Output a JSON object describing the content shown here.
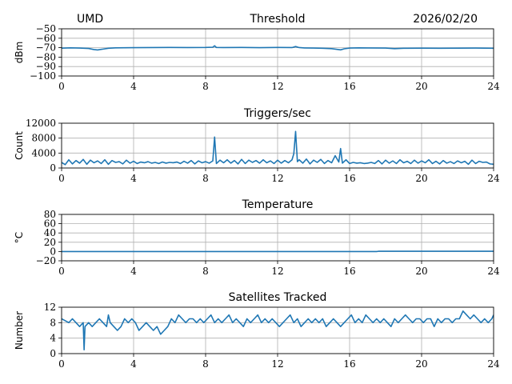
{
  "header": {
    "site": "UMD",
    "date": "2026/02/20"
  },
  "colors": {
    "series": "#1f77b4",
    "grid": "#b0b0b0",
    "axis": "#000000"
  },
  "chart_data": [
    {
      "type": "line",
      "title": "Threshold",
      "xlabel": "",
      "ylabel": "dBm",
      "xlim": [
        0,
        24
      ],
      "ylim": [
        -100,
        -50
      ],
      "xticks": [
        0,
        4,
        8,
        12,
        16,
        20,
        24
      ],
      "yticks": [
        -100,
        -90,
        -80,
        -70,
        -60,
        -50
      ],
      "xtick_labels": [
        "0",
        "4",
        "8",
        "12",
        "16",
        "20",
        "24"
      ],
      "ytick_labels": [
        "−100",
        "−90",
        "−80",
        "−70",
        "−60",
        "−50"
      ],
      "grid": true,
      "series": [
        {
          "x": [
            0,
            0.5,
            1.0,
            1.5,
            1.8,
            2.0,
            2.3,
            2.6,
            3.0,
            4.0,
            5.0,
            6.0,
            7.0,
            8.0,
            8.4,
            8.5,
            8.6,
            9.0,
            10.0,
            11.0,
            12.0,
            12.8,
            13.0,
            13.2,
            13.5,
            14.0,
            14.5,
            15.0,
            15.3,
            15.5,
            15.7,
            16.0,
            16.5,
            17.0,
            18.0,
            18.5,
            19.0,
            20.0,
            21.0,
            22.0,
            23.0,
            24.0
          ],
          "y": [
            -70.5,
            -70.2,
            -70.4,
            -70.8,
            -72.0,
            -72.4,
            -71.5,
            -70.6,
            -70.2,
            -70.0,
            -69.9,
            -69.8,
            -69.9,
            -69.8,
            -69.5,
            -68.0,
            -69.8,
            -69.9,
            -69.8,
            -70.0,
            -69.8,
            -69.9,
            -68.8,
            -69.9,
            -70.3,
            -70.4,
            -70.6,
            -71.0,
            -71.8,
            -72.3,
            -71.2,
            -70.4,
            -70.2,
            -70.3,
            -70.4,
            -71.0,
            -70.6,
            -70.5,
            -70.6,
            -70.5,
            -70.4,
            -70.6
          ]
        }
      ]
    },
    {
      "type": "line",
      "title": "Triggers/sec",
      "xlabel": "",
      "ylabel": "Count",
      "xlim": [
        0,
        24
      ],
      "ylim": [
        0,
        12000
      ],
      "xticks": [
        0,
        4,
        8,
        12,
        16,
        20,
        24
      ],
      "yticks": [
        0,
        4000,
        8000,
        12000
      ],
      "xtick_labels": [
        "0",
        "4",
        "8",
        "12",
        "16",
        "20",
        "24"
      ],
      "ytick_labels": [
        "0",
        "4000",
        "8000",
        "12000"
      ],
      "grid": true,
      "series": [
        {
          "x": [
            0,
            0.2,
            0.4,
            0.6,
            0.8,
            1.0,
            1.2,
            1.4,
            1.6,
            1.8,
            2.0,
            2.2,
            2.4,
            2.6,
            2.8,
            3.0,
            3.2,
            3.4,
            3.6,
            3.8,
            4.0,
            4.2,
            4.4,
            4.6,
            4.8,
            5.0,
            5.2,
            5.4,
            5.6,
            5.8,
            6.0,
            6.2,
            6.4,
            6.6,
            6.8,
            7.0,
            7.2,
            7.4,
            7.6,
            7.8,
            8.0,
            8.2,
            8.4,
            8.5,
            8.6,
            8.8,
            9.0,
            9.2,
            9.4,
            9.6,
            9.8,
            10.0,
            10.2,
            10.4,
            10.6,
            10.8,
            11.0,
            11.2,
            11.4,
            11.6,
            11.8,
            12.0,
            12.2,
            12.4,
            12.6,
            12.8,
            12.9,
            13.0,
            13.1,
            13.2,
            13.4,
            13.6,
            13.8,
            14.0,
            14.2,
            14.4,
            14.6,
            14.8,
            15.0,
            15.2,
            15.4,
            15.5,
            15.6,
            15.8,
            16.0,
            16.2,
            16.4,
            16.6,
            16.8,
            17.0,
            17.2,
            17.4,
            17.6,
            17.8,
            18.0,
            18.2,
            18.4,
            18.6,
            18.8,
            19.0,
            19.2,
            19.4,
            19.6,
            19.8,
            20.0,
            20.2,
            20.4,
            20.6,
            20.8,
            21.0,
            21.2,
            21.4,
            21.6,
            21.8,
            22.0,
            22.2,
            22.4,
            22.6,
            22.8,
            23.0,
            23.2,
            23.4,
            23.6,
            23.8,
            24.0
          ],
          "y": [
            1500,
            900,
            2200,
            1100,
            2000,
            1300,
            2300,
            1000,
            2100,
            1400,
            1900,
            1200,
            2200,
            1000,
            2000,
            1500,
            1700,
            1100,
            2100,
            1300,
            1800,
            1200,
            1600,
            1400,
            1700,
            1300,
            1500,
            1200,
            1600,
            1300,
            1500,
            1400,
            1600,
            1200,
            1800,
            1300,
            2000,
            1100,
            1900,
            1400,
            1700,
            1300,
            1900,
            8300,
            1200,
            2100,
            1400,
            2200,
            1300,
            2000,
            1100,
            2300,
            1200,
            2100,
            1500,
            2000,
            1300,
            2200,
            1400,
            1900,
            1200,
            2100,
            1300,
            2000,
            1400,
            2200,
            3800,
            9800,
            1700,
            2200,
            1300,
            2400,
            1100,
            2100,
            1500,
            2300,
            1200,
            2000,
            1400,
            3300,
            1600,
            5200,
            1300,
            2200,
            1200,
            1500,
            1300,
            1400,
            1200,
            1300,
            1500,
            1200,
            2000,
            1100,
            2100,
            1300,
            1900,
            1200,
            2200,
            1400,
            1800,
            1200,
            2100,
            1300,
            1900,
            1400,
            2200,
            1200,
            1800,
            1100,
            2000,
            1300,
            1700,
            1200,
            1900,
            1400,
            1800,
            1000,
            2100,
            1200,
            1800,
            1500,
            1600,
            1100,
            1000
          ]
        }
      ]
    },
    {
      "type": "line",
      "title": "Temperature",
      "xlabel": "",
      "ylabel": "°C",
      "xlim": [
        0,
        24
      ],
      "ylim": [
        -20,
        80
      ],
      "xticks": [
        0,
        4,
        8,
        12,
        16,
        20,
        24
      ],
      "yticks": [
        -20,
        0,
        20,
        40,
        60,
        80
      ],
      "xtick_labels": [
        "0",
        "4",
        "8",
        "12",
        "16",
        "20",
        "24"
      ],
      "ytick_labels": [
        "−20",
        "0",
        "20",
        "40",
        "60",
        "80"
      ],
      "grid": true,
      "series": [
        {
          "x": [
            0,
            4,
            8,
            12,
            16,
            17.5,
            17.6,
            20,
            24
          ],
          "y": [
            0.0,
            0.0,
            0.0,
            0.0,
            0.0,
            0.0,
            0.5,
            0.5,
            0.5
          ]
        }
      ]
    },
    {
      "type": "line",
      "title": "Satellites Tracked",
      "xlabel": "",
      "ylabel": "Number",
      "xlim": [
        0,
        24
      ],
      "ylim": [
        0,
        12
      ],
      "xticks": [
        0,
        4,
        8,
        12,
        16,
        20,
        24
      ],
      "yticks": [
        0,
        4,
        8,
        12
      ],
      "xtick_labels": [
        "0",
        "4",
        "8",
        "12",
        "16",
        "20",
        "24"
      ],
      "ytick_labels": [
        "0",
        "4",
        "8",
        "12"
      ],
      "grid": true,
      "series": [
        {
          "x": [
            0,
            0.4,
            0.6,
            0.8,
            1.0,
            1.2,
            1.25,
            1.3,
            1.5,
            1.7,
            1.9,
            2.1,
            2.3,
            2.5,
            2.6,
            2.7,
            2.9,
            3.1,
            3.3,
            3.5,
            3.7,
            3.9,
            4.1,
            4.3,
            4.5,
            4.7,
            4.9,
            5.1,
            5.3,
            5.5,
            5.7,
            5.9,
            6.1,
            6.3,
            6.5,
            6.7,
            6.9,
            7.1,
            7.3,
            7.5,
            7.7,
            7.9,
            8.1,
            8.3,
            8.5,
            8.7,
            8.9,
            9.1,
            9.3,
            9.5,
            9.7,
            9.9,
            10.1,
            10.3,
            10.5,
            10.7,
            10.9,
            11.1,
            11.3,
            11.5,
            11.7,
            11.9,
            12.1,
            12.3,
            12.5,
            12.7,
            12.9,
            13.1,
            13.3,
            13.5,
            13.7,
            13.9,
            14.1,
            14.3,
            14.5,
            14.7,
            14.9,
            15.1,
            15.3,
            15.5,
            15.7,
            15.9,
            16.1,
            16.3,
            16.5,
            16.7,
            16.9,
            17.1,
            17.3,
            17.5,
            17.7,
            17.9,
            18.1,
            18.3,
            18.5,
            18.7,
            18.9,
            19.1,
            19.3,
            19.5,
            19.7,
            19.9,
            20.1,
            20.3,
            20.5,
            20.7,
            20.9,
            21.1,
            21.3,
            21.5,
            21.7,
            21.9,
            22.1,
            22.3,
            22.5,
            22.7,
            22.9,
            23.1,
            23.3,
            23.5,
            23.7,
            23.9,
            24.0
          ],
          "y": [
            9,
            8,
            9,
            8,
            7,
            8,
            1,
            7,
            8,
            7,
            8,
            9,
            8,
            7,
            10,
            8,
            7,
            6,
            7,
            9,
            8,
            9,
            8,
            6,
            7,
            8,
            7,
            6,
            7,
            5,
            6,
            7,
            9,
            8,
            10,
            9,
            8,
            9,
            9,
            8,
            9,
            8,
            9,
            10,
            8,
            9,
            8,
            9,
            10,
            8,
            9,
            8,
            7,
            9,
            8,
            9,
            10,
            8,
            9,
            8,
            9,
            8,
            7,
            8,
            9,
            10,
            8,
            9,
            7,
            8,
            9,
            8,
            9,
            8,
            9,
            7,
            8,
            9,
            8,
            7,
            8,
            9,
            10,
            8,
            9,
            8,
            10,
            9,
            8,
            9,
            8,
            9,
            8,
            7,
            9,
            8,
            9,
            10,
            9,
            8,
            9,
            9,
            8,
            9,
            9,
            7,
            9,
            8,
            9,
            9,
            8,
            9,
            9,
            11,
            10,
            9,
            10,
            9,
            8,
            9,
            8,
            9,
            10
          ]
        }
      ]
    }
  ]
}
